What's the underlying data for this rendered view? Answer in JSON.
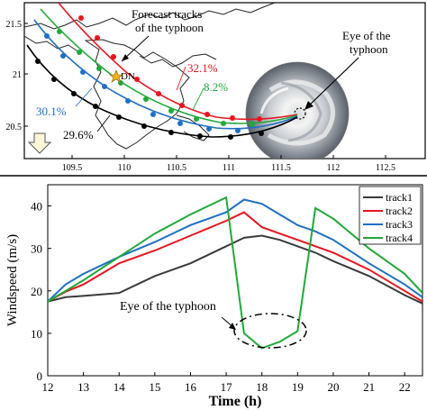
{
  "map": {
    "x_ticks": [
      "109.5",
      "110",
      "110.5",
      "111",
      "111.5",
      "112",
      "112.5"
    ],
    "y_ticks": [
      "21.5",
      "21",
      "20.5"
    ],
    "annotations": {
      "forecast_line1": "Forecast tracks",
      "forecast_line2": "of the typhoon",
      "eye_line1": "Eye of the",
      "eye_line2": "typhoon",
      "dn": "DN"
    },
    "percentages": [
      {
        "text": "32.1%",
        "color": "#e8141e"
      },
      {
        "text": "8.2%",
        "color": "#22a83a"
      },
      {
        "text": "30.1%",
        "color": "#1f6fc4"
      },
      {
        "text": "29.6%",
        "color": "#000000"
      }
    ]
  },
  "chart_data": {
    "type": "line",
    "xlabel": "Time (h)",
    "ylabel": "Windspeed (m/s)",
    "xlim": [
      12,
      22.5
    ],
    "ylim": [
      0,
      45
    ],
    "x_ticks": [
      12,
      13,
      14,
      15,
      16,
      17,
      18,
      19,
      20,
      21,
      22
    ],
    "y_ticks": [
      0,
      10,
      20,
      30,
      40
    ],
    "grid": false,
    "legend_position": "top-right",
    "annotation": "Eye of the typhoon",
    "x": [
      12,
      12.5,
      13,
      14,
      15,
      16,
      17,
      17.5,
      18,
      18.5,
      19,
      19.5,
      20,
      21,
      22,
      22.5
    ],
    "series": [
      {
        "name": "track1",
        "color": "#3a3a3a",
        "values": [
          17.5,
          18.5,
          18.8,
          19.5,
          23.5,
          26.5,
          30.5,
          32.5,
          33,
          32,
          30.5,
          29,
          27,
          23.5,
          19,
          17
        ]
      },
      {
        "name": "track2",
        "color": "#e8141e",
        "values": [
          17.5,
          19.8,
          21.5,
          26.5,
          29.5,
          33,
          36.5,
          38.5,
          35,
          33.5,
          32,
          30.5,
          29,
          25,
          20,
          17.5
        ]
      },
      {
        "name": "track3",
        "color": "#1f6fc4",
        "values": [
          17.5,
          21.5,
          24,
          28,
          31.5,
          35.5,
          38.5,
          41.5,
          40.5,
          38,
          35.5,
          34,
          32,
          26.5,
          21.5,
          18.5
        ]
      },
      {
        "name": "track4",
        "color": "#22a83a",
        "values": [
          17.5,
          20,
          22.5,
          28,
          33.5,
          38,
          42,
          10,
          6.5,
          8,
          10.5,
          39.5,
          37,
          30,
          24,
          19.5
        ]
      }
    ]
  }
}
